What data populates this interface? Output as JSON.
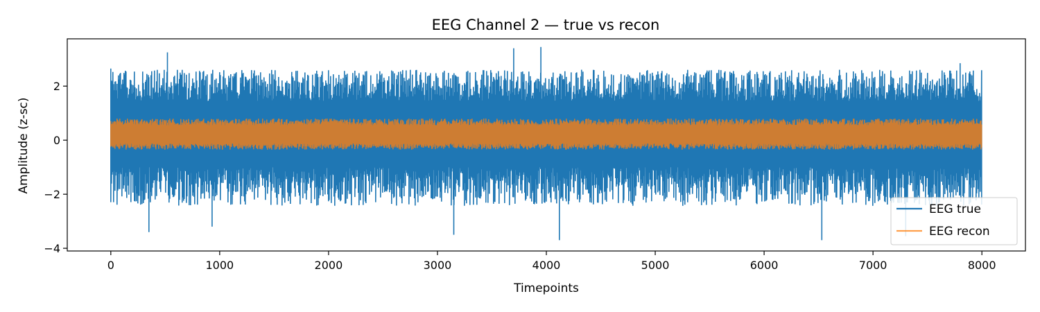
{
  "chart_data": {
    "type": "line",
    "title": "EEG Channel 2 — true vs recon",
    "xlabel": "Timepoints",
    "ylabel": "Amplitude (z-sc)",
    "xlim": [
      -400,
      8400
    ],
    "ylim": [
      -4.1,
      3.75
    ],
    "x_ticks": [
      0,
      1000,
      2000,
      3000,
      4000,
      5000,
      6000,
      7000,
      8000
    ],
    "x_tick_labels": [
      "0",
      "1000",
      "2000",
      "3000",
      "4000",
      "5000",
      "6000",
      "7000",
      "8000"
    ],
    "y_ticks": [
      -4,
      -2,
      0,
      2
    ],
    "y_tick_labels": [
      "−4",
      "−2",
      "0",
      "2"
    ],
    "grid": false,
    "legend": "lower-right",
    "n_points": 8000,
    "series": [
      {
        "name": "EEG true",
        "color": "#1f77b4",
        "approx_band": [
          -2.3,
          2.5
        ],
        "notable_peaks": [
          [
            0,
            2.65
          ],
          [
            520,
            3.25
          ],
          [
            3700,
            3.4
          ],
          [
            3950,
            3.45
          ],
          [
            7800,
            2.85
          ]
        ],
        "notable_troughs": [
          [
            350,
            -3.4
          ],
          [
            930,
            -3.2
          ],
          [
            3150,
            -3.5
          ],
          [
            4120,
            -3.7
          ],
          [
            6530,
            -3.7
          ],
          [
            7300,
            -3.55
          ]
        ]
      },
      {
        "name": "EEG recon",
        "color": "#ff7f0e",
        "approx_band": [
          -0.35,
          0.8
        ]
      }
    ]
  }
}
